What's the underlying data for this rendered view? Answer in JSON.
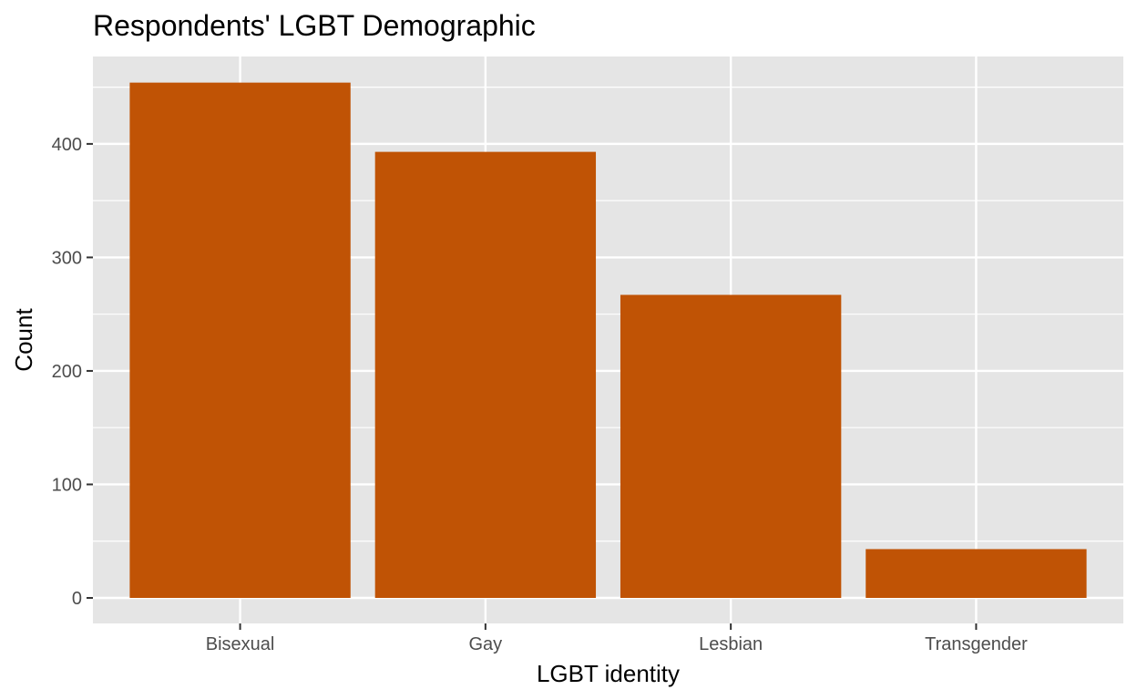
{
  "chart_data": {
    "type": "bar",
    "title": "Respondents' LGBT Demographic",
    "xlabel": "LGBT identity",
    "ylabel": "Count",
    "categories": [
      "Bisexual",
      "Gay",
      "Lesbian",
      "Transgender"
    ],
    "values": [
      454,
      393,
      267,
      43
    ],
    "ylim": [
      0,
      477
    ],
    "yticks": [
      0,
      100,
      200,
      300,
      400
    ],
    "grid": true,
    "legend": "none",
    "colors": {
      "bar": "#c05305",
      "panel": "#e5e5e5",
      "grid": "#ffffff",
      "tick": "#333333"
    }
  }
}
